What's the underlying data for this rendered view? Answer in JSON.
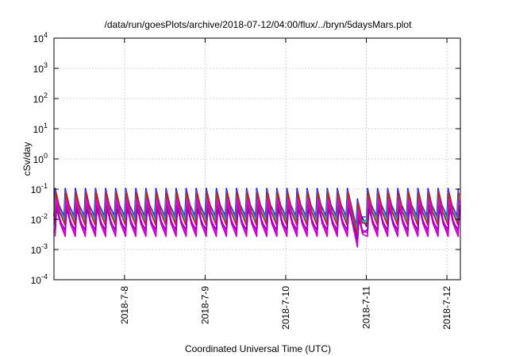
{
  "chart_data": {
    "type": "line",
    "title": "/data/run/goesPlots/archive/2018-07-12/04:00/flux/../bryn/5daysMars.plot",
    "xlabel": "Coordinated Universal Time (UTC)",
    "ylabel": "cSv/day",
    "x_axis": {
      "start": "2018-07-07T03:00",
      "end": "2018-07-12T04:00",
      "tick_labels": [
        "2018-7-8",
        "2018-7-9",
        "2018-7-10",
        "2018-7-11",
        "2018-7-12"
      ],
      "tick_dates": [
        "2018-07-08",
        "2018-07-09",
        "2018-07-10",
        "2018-07-11",
        "2018-07-12"
      ]
    },
    "y_axis": {
      "scale": "log",
      "ylim": [
        0.0001,
        10000
      ],
      "tick_bases": [
        "10",
        "10",
        "10",
        "10",
        "10",
        "10",
        "10",
        "10",
        "10"
      ],
      "tick_exponents": [
        "-4",
        "-3",
        "-2",
        "-1",
        "0",
        "1",
        "2",
        "3",
        "4"
      ],
      "tick_values": [
        0.0001,
        0.001,
        0.01,
        0.1,
        1,
        10,
        100,
        1000,
        10000
      ]
    },
    "grid": true,
    "pattern": {
      "description": "sawtooth: sharp rise then decay, repeating about every 3 hours",
      "period_hours": 3.0,
      "dip_interval": [
        "2018-07-10T20:00",
        "2018-07-11T00:00"
      ],
      "dip_factor": 0.45
    },
    "series": [
      {
        "color": "#0000aa",
        "peak": 0.105,
        "trough": 0.013
      },
      {
        "color": "#4444ee",
        "peak": 0.095,
        "trough": 0.012
      },
      {
        "color": "#00bcbc",
        "peak": 0.06,
        "trough": 0.0095
      },
      {
        "color": "#00cc99",
        "peak": 0.05,
        "trough": 0.0085
      },
      {
        "color": "#cc2200",
        "peak": 0.075,
        "trough": 0.0065
      },
      {
        "color": "#ee00ee",
        "peak": 0.045,
        "trough": 0.0035
      },
      {
        "color": "#cc00cc",
        "peak": 0.03,
        "trough": 0.0027
      },
      {
        "color": "#9900bb",
        "peak": 0.022,
        "trough": 0.0045
      }
    ]
  }
}
